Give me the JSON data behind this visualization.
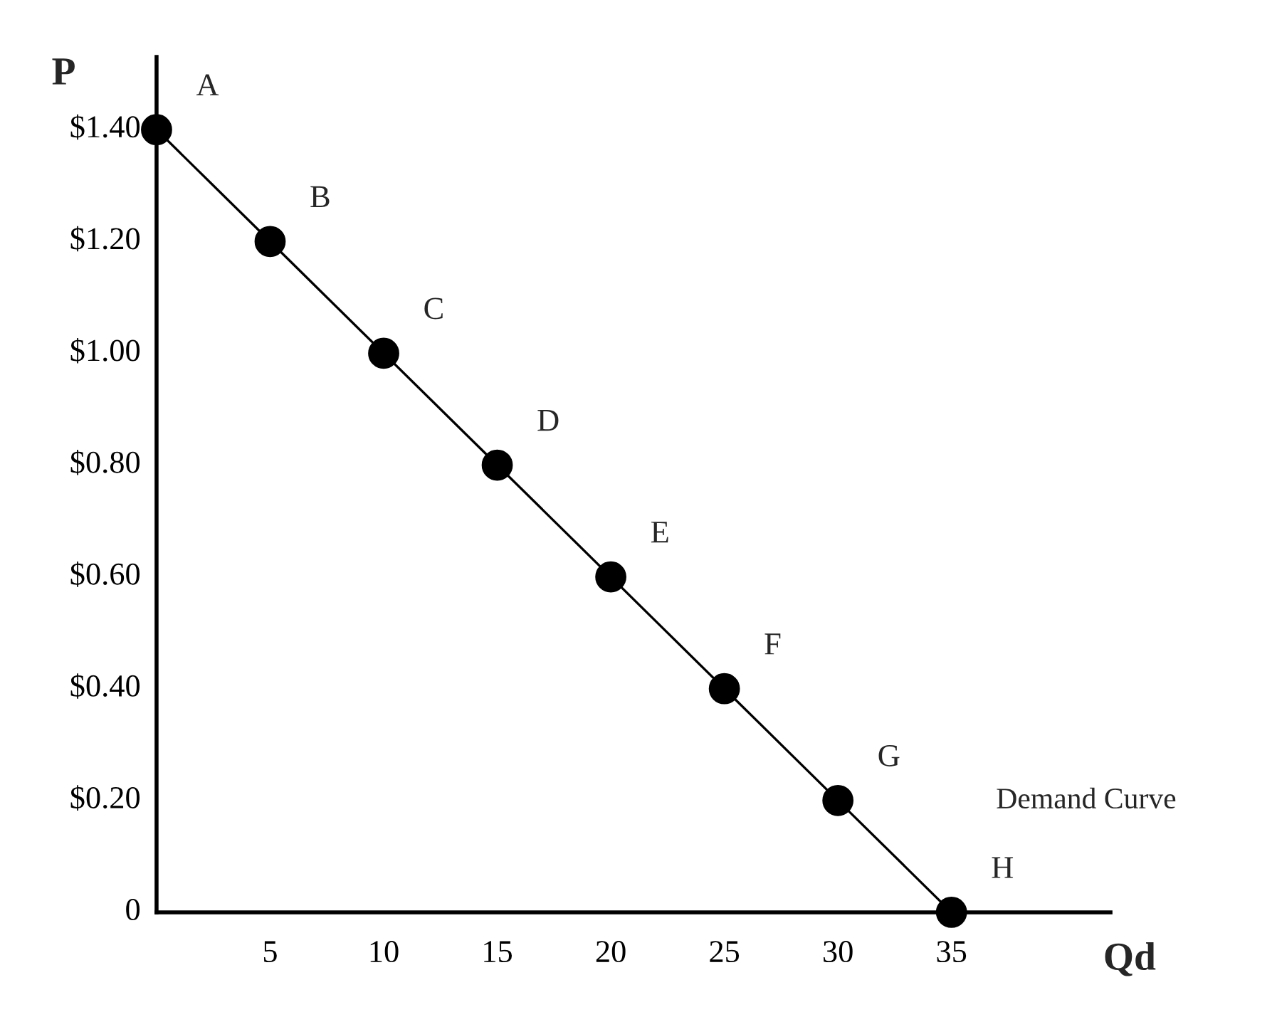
{
  "chart_data": {
    "type": "line",
    "x": [
      0,
      5,
      10,
      15,
      20,
      25,
      30,
      35
    ],
    "series": [
      {
        "color": "#000000",
        "values": [
          1.4,
          1.2,
          1.0,
          0.8,
          0.6,
          0.4,
          0.2,
          0
        ]
      }
    ],
    "marker": "circle",
    "line_style": "solid",
    "grid": false,
    "legend": false,
    "xlabel": "Qd",
    "ylabel": "P",
    "xlim": [
      0,
      42
    ],
    "ylim": [
      0,
      1.53
    ],
    "xticks": [
      5,
      10,
      15,
      20,
      25,
      30,
      35
    ],
    "yticks": [
      {
        "value": 0,
        "label": "0"
      },
      {
        "value": 0.2,
        "label": "$0.20"
      },
      {
        "value": 0.4,
        "label": "$0.40"
      },
      {
        "value": 0.6,
        "label": "$0.60"
      },
      {
        "value": 0.8,
        "label": "$0.80"
      },
      {
        "value": 1.0,
        "label": "$1.00"
      },
      {
        "value": 1.2,
        "label": "$1.20"
      },
      {
        "value": 1.4,
        "label": "$1.40"
      }
    ],
    "annotations": [
      {
        "text": "A",
        "x": 0,
        "y": 1.4
      },
      {
        "text": "B",
        "x": 5,
        "y": 1.2
      },
      {
        "text": "C",
        "x": 10,
        "y": 1.0
      },
      {
        "text": "D",
        "x": 15,
        "y": 0.8
      },
      {
        "text": "E",
        "x": 20,
        "y": 0.6
      },
      {
        "text": "F",
        "x": 25,
        "y": 0.4
      },
      {
        "text": "G",
        "x": 30,
        "y": 0.2
      },
      {
        "text": "H",
        "x": 35,
        "y": 0
      },
      "Demand Curve"
    ]
  }
}
